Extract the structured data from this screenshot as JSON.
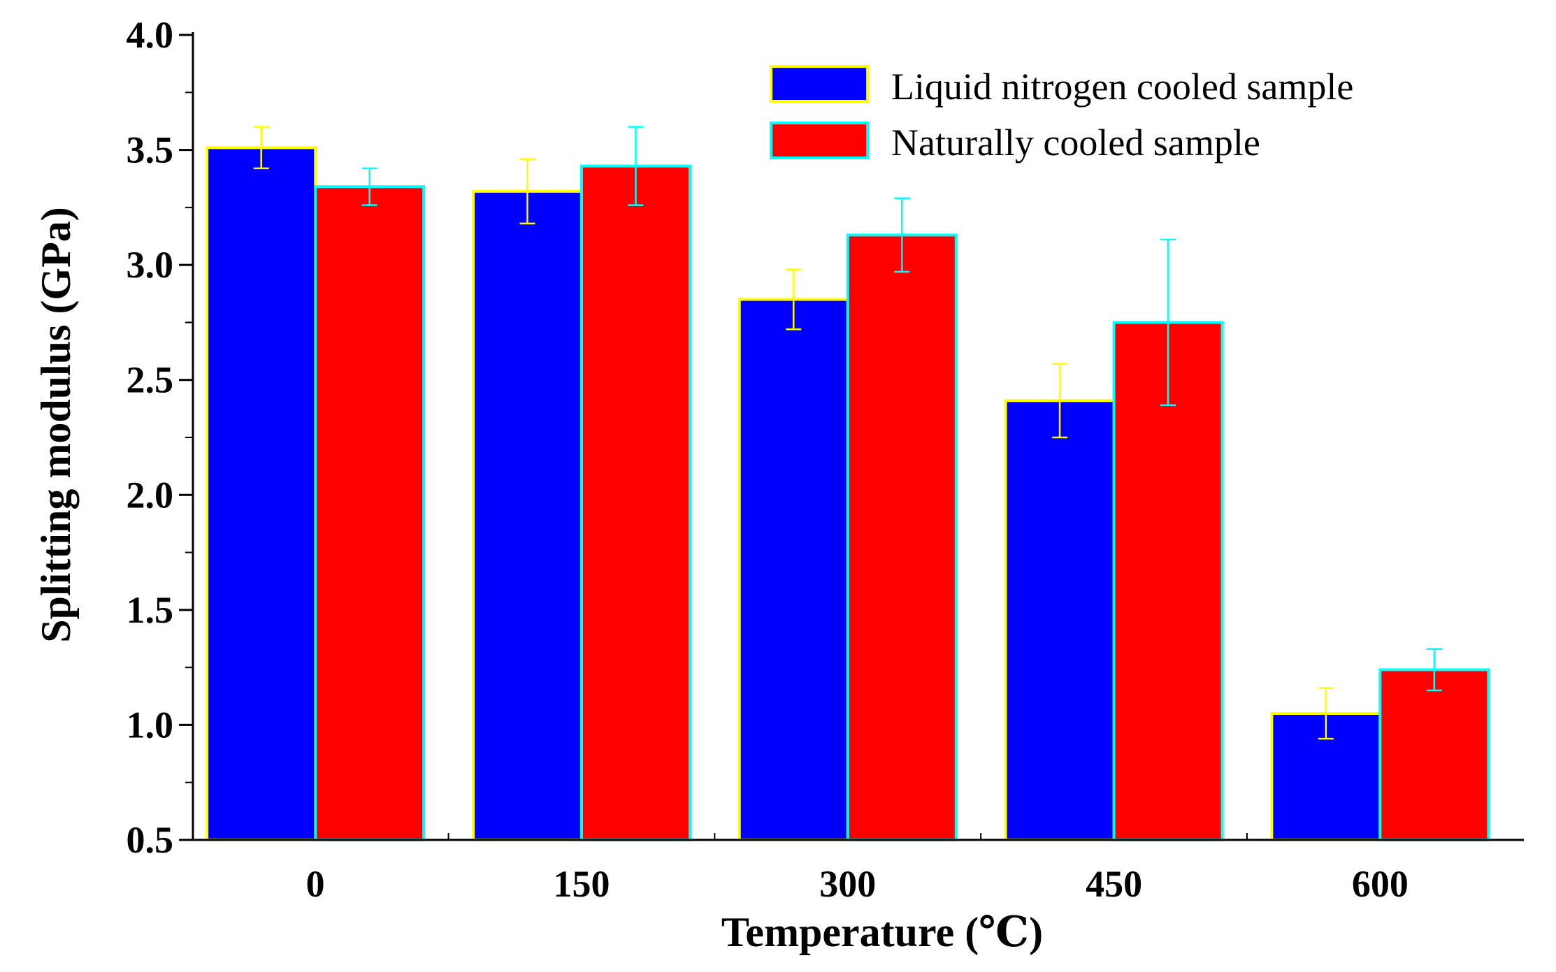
{
  "chart_data": {
    "type": "bar",
    "title": "",
    "xlabel": "Temperature (℃)",
    "ylabel": "Splitting modulus (GPa)",
    "categories": [
      "0",
      "150",
      "300",
      "450",
      "600"
    ],
    "ylim": [
      0.5,
      4.0
    ],
    "yticks": [
      "0.5",
      "1.0",
      "1.5",
      "2.0",
      "2.5",
      "3.0",
      "3.5",
      "4.0"
    ],
    "grid": false,
    "legend_position": "top-right",
    "series": [
      {
        "name": "Liquid nitrogen cooled sample",
        "fill": "#0000ff",
        "edge": "#ffff00",
        "values": [
          3.51,
          3.32,
          2.85,
          2.41,
          1.05
        ],
        "errors": [
          0.09,
          0.14,
          0.13,
          0.16,
          0.11
        ]
      },
      {
        "name": "Naturally cooled sample",
        "fill": "#ff0000",
        "edge": "#00ffff",
        "values": [
          3.34,
          3.43,
          3.13,
          2.75,
          1.24
        ],
        "errors": [
          0.08,
          0.17,
          0.16,
          0.36,
          0.09
        ]
      }
    ]
  }
}
